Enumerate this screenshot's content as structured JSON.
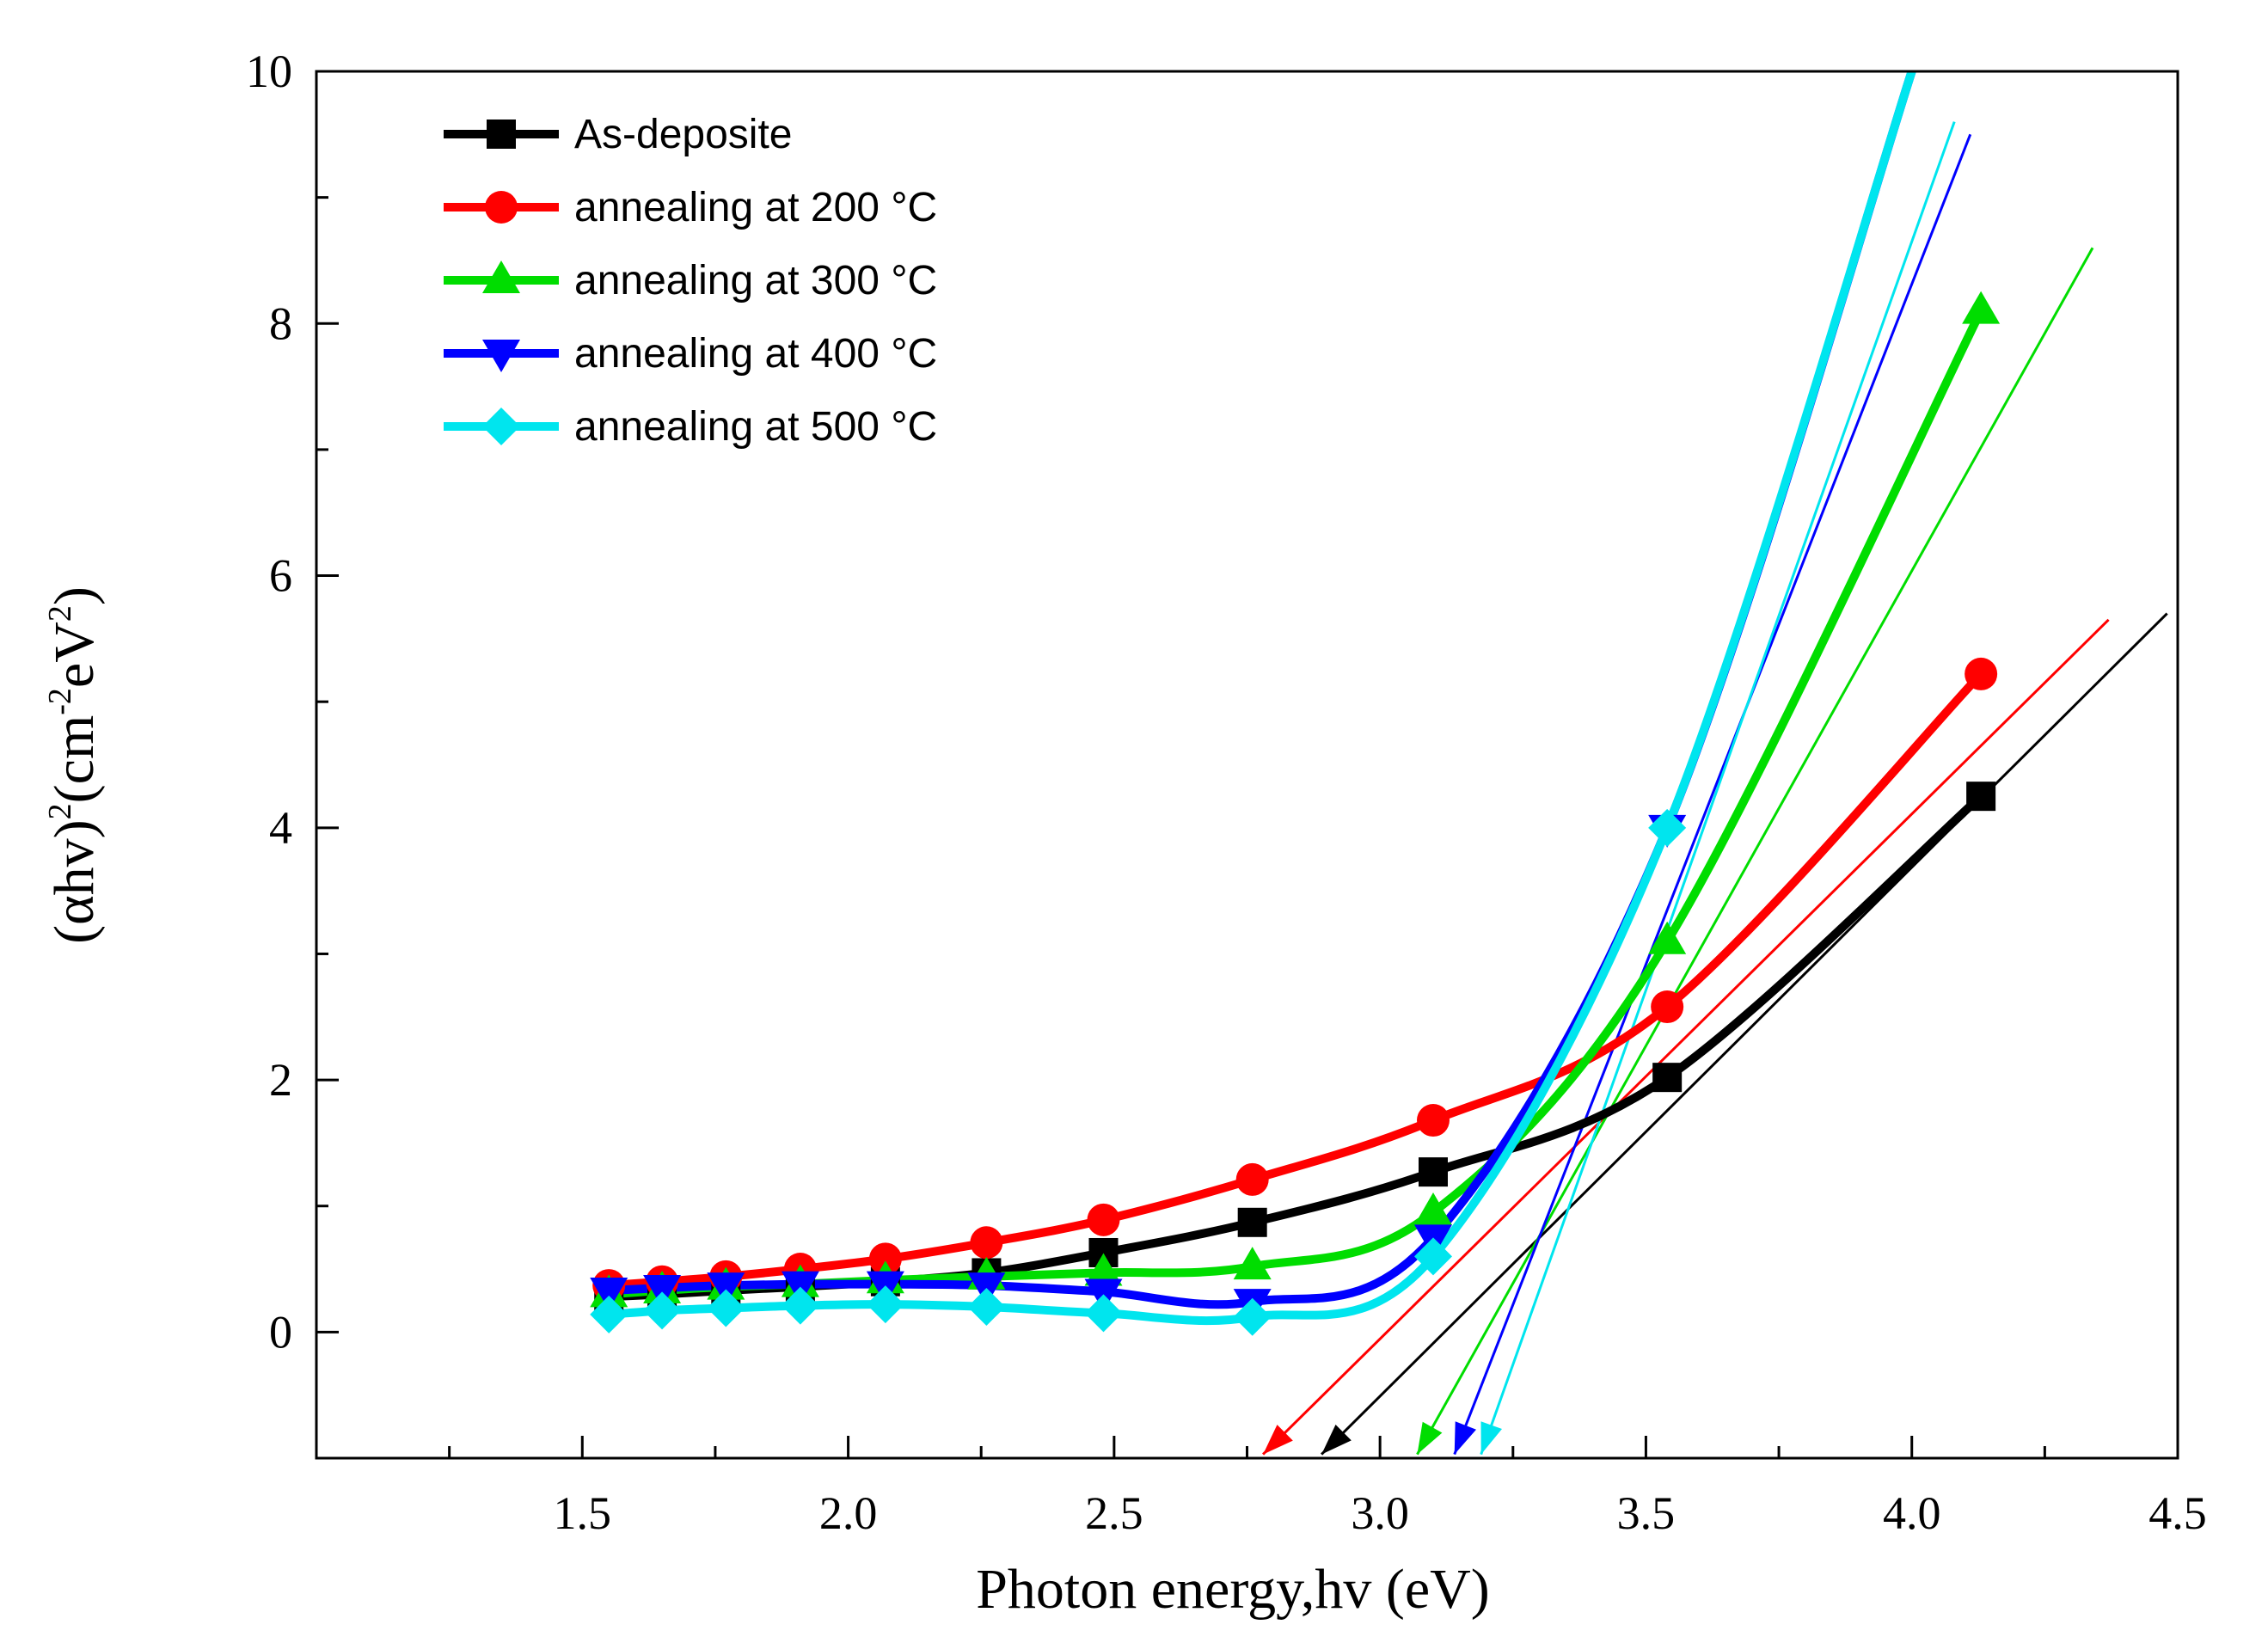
{
  "chart_data": {
    "type": "line",
    "title": "",
    "xlabel": "Photon energy,hv (eV)",
    "ylabel": {
      "part1": "(αhv)",
      "sup1": "2",
      "part2": "(cm",
      "sup2": "-2",
      "part3": "eV",
      "sup3": "2",
      "part4": ")"
    },
    "xlim": [
      1.0,
      4.5
    ],
    "ylim": [
      -1,
      10
    ],
    "x_ticks": [
      "1.5",
      "2.0",
      "2.5",
      "3.0",
      "3.5",
      "4.0",
      "4.5"
    ],
    "y_ticks": [
      "0",
      "2",
      "4",
      "6",
      "8",
      "10"
    ],
    "legend_position": "top-left",
    "series": [
      {
        "name": "As-deposite",
        "color": "#000000",
        "marker": "square",
        "x": [
          1.55,
          1.65,
          1.77,
          1.91,
          2.07,
          2.26,
          2.48,
          2.76,
          3.1,
          3.54,
          4.13
        ],
        "values": [
          0.28,
          0.3,
          0.33,
          0.36,
          0.4,
          0.47,
          0.63,
          0.87,
          1.27,
          2.02,
          4.25
        ]
      },
      {
        "name": "annealing at 200 °C",
        "color": "#ff0000",
        "marker": "circle",
        "x": [
          1.55,
          1.65,
          1.77,
          1.91,
          2.07,
          2.26,
          2.48,
          2.76,
          3.1,
          3.54,
          4.13
        ],
        "values": [
          0.37,
          0.4,
          0.44,
          0.5,
          0.58,
          0.71,
          0.89,
          1.21,
          1.68,
          2.58,
          5.22
        ]
      },
      {
        "name": "annealing at 300 °C",
        "color": "#00dd00",
        "marker": "triangle-up",
        "x": [
          1.55,
          1.65,
          1.77,
          1.91,
          2.07,
          2.26,
          2.48,
          2.76,
          3.1,
          3.54,
          4.13
        ],
        "values": [
          0.3,
          0.33,
          0.36,
          0.38,
          0.41,
          0.44,
          0.47,
          0.52,
          0.95,
          3.1,
          8.1
        ]
      },
      {
        "name": "annealing at 400 °C",
        "color": "#0000ff",
        "marker": "triangle-down",
        "x": [
          1.55,
          1.65,
          1.77,
          1.91,
          2.07,
          2.26,
          2.48,
          2.76,
          3.1,
          3.54,
          4.0
        ],
        "values": [
          0.33,
          0.35,
          0.37,
          0.38,
          0.38,
          0.37,
          0.32,
          0.24,
          0.75,
          4.0,
          10.0
        ]
      },
      {
        "name": "annealing at 500 °C",
        "color": "#00e5ee",
        "marker": "diamond",
        "x": [
          1.55,
          1.65,
          1.77,
          1.91,
          2.07,
          2.26,
          2.48,
          2.76,
          3.1,
          3.54,
          4.0
        ],
        "values": [
          0.14,
          0.17,
          0.19,
          0.21,
          0.22,
          0.2,
          0.15,
          0.12,
          0.6,
          4.0,
          10.0
        ]
      }
    ],
    "tangent_lines": [
      {
        "series": "As-deposite",
        "color": "#000000",
        "from": [
          4.48,
          5.7
        ],
        "to": [
          2.89,
          -0.97
        ]
      },
      {
        "series": "annealing at 200 °C",
        "color": "#ff0000",
        "from": [
          4.37,
          5.65
        ],
        "to": [
          2.78,
          -0.97
        ]
      },
      {
        "series": "annealing at 300 °C",
        "color": "#00dd00",
        "from": [
          4.34,
          8.6
        ],
        "to": [
          3.07,
          -0.97
        ]
      },
      {
        "series": "annealing at 400 °C",
        "color": "#0000ff",
        "from": [
          4.11,
          9.5
        ],
        "to": [
          3.14,
          -0.97
        ]
      },
      {
        "series": "annealing at 500 °C",
        "color": "#00e5ee",
        "from": [
          4.08,
          9.6
        ],
        "to": [
          3.19,
          -0.97
        ]
      }
    ]
  }
}
